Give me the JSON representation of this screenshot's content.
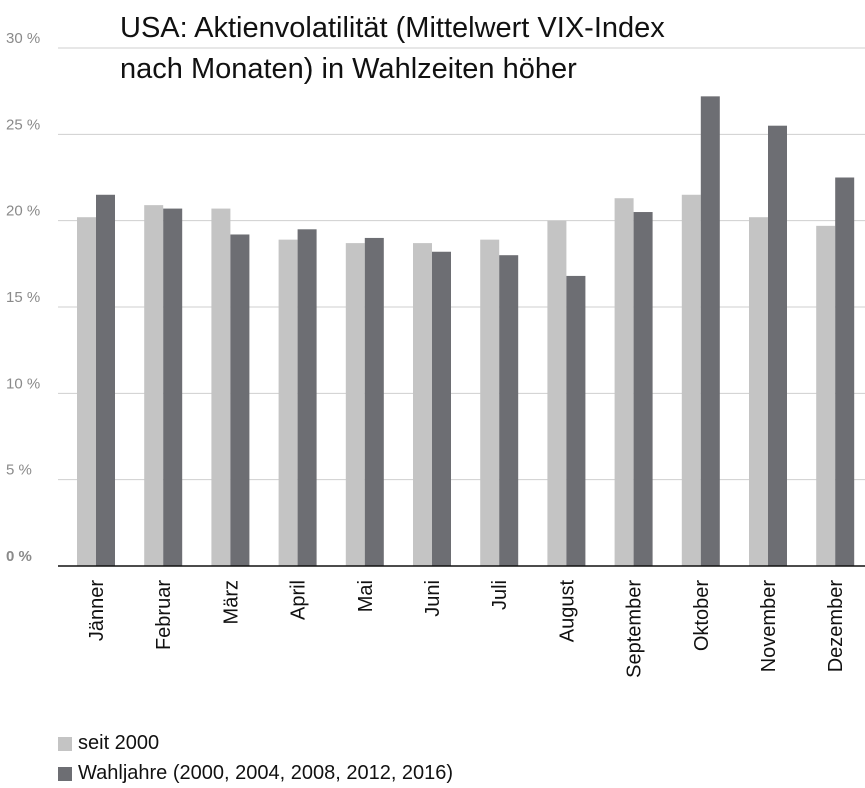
{
  "chart_data": {
    "type": "bar",
    "title_lines": [
      "USA: Aktienvolatilität (Mittelwert VIX-Index",
      "nach Monaten) in Wahlzeiten höher"
    ],
    "categories": [
      "Jänner",
      "Februar",
      "März",
      "April",
      "Mai",
      "Juni",
      "Juli",
      "August",
      "September",
      "Oktober",
      "November",
      "Dezember"
    ],
    "series": [
      {
        "name": "seit 2000",
        "color": "#c4c4c4",
        "values": [
          20.2,
          20.9,
          20.7,
          18.9,
          18.7,
          18.7,
          18.9,
          20.0,
          21.3,
          21.5,
          20.2,
          19.7
        ]
      },
      {
        "name": "Wahljahre (2000, 2004, 2008, 2012, 2016)",
        "color": "#6d6e73",
        "values": [
          21.5,
          20.7,
          19.2,
          19.5,
          19.0,
          18.2,
          18.0,
          16.8,
          20.5,
          27.2,
          25.5,
          22.5
        ]
      }
    ],
    "y_ticks": [
      "0 %",
      "5 %",
      "10 %",
      "15 %",
      "20 %",
      "25 %",
      "30 %"
    ],
    "ylim": [
      0,
      30
    ],
    "grid": true,
    "legend": "bottom-left"
  }
}
